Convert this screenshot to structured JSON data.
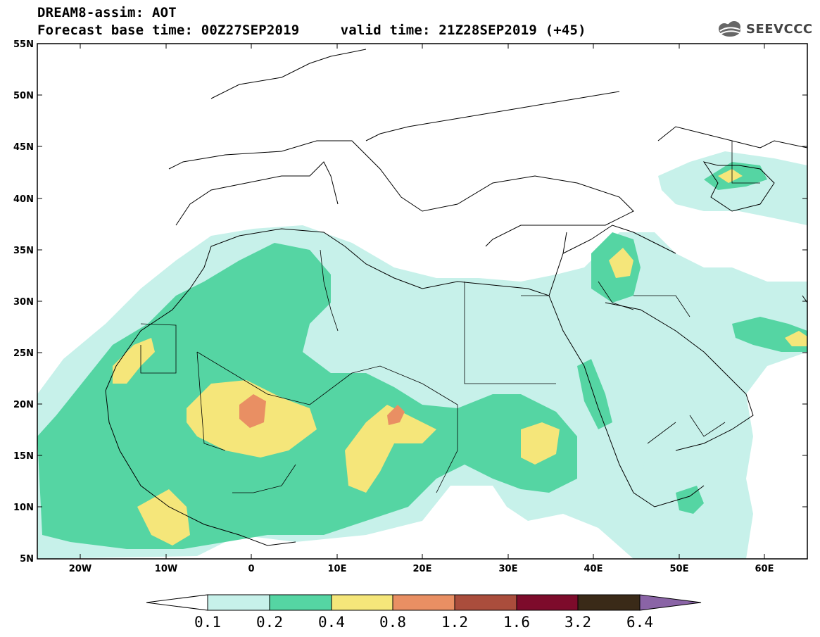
{
  "title": {
    "line1": "DREAM8-assim: AOT",
    "line2": "Forecast base time: 00Z27SEP2019     valid time: 21Z28SEP2019 (+45)"
  },
  "logo": {
    "text": "SEEVCCC",
    "icon": "cloud-icon"
  },
  "map": {
    "type": "filled-contour-map",
    "variable": "AOT",
    "lon_range": [
      -25,
      65
    ],
    "lat_range": [
      5,
      55
    ],
    "lat_ticks": [
      "55N",
      "50N",
      "45N",
      "40N",
      "35N",
      "30N",
      "25N",
      "20N",
      "15N",
      "10N",
      "5N"
    ],
    "lon_ticks": [
      "20W",
      "10W",
      "0",
      "10E",
      "20E",
      "30E",
      "40E",
      "50E",
      "60E"
    ]
  },
  "colorbar": {
    "levels": [
      "0.1",
      "0.2",
      "0.4",
      "0.8",
      "1.2",
      "1.6",
      "3.2",
      "6.4"
    ],
    "colors": [
      "#ffffff",
      "#c7f1ea",
      "#55d5a3",
      "#f5e67a",
      "#e98f63",
      "#aa4d3c",
      "#7d0b2b",
      "#3a2a18",
      "#8a64a6"
    ]
  }
}
